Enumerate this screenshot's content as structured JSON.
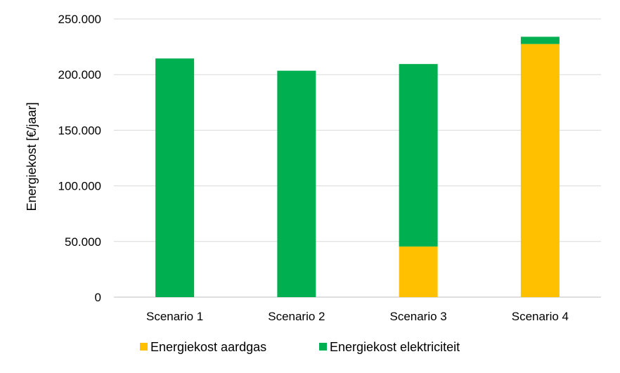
{
  "chart_data": {
    "type": "bar",
    "stacked": true,
    "categories": [
      "Scenario 1",
      "Scenario 2",
      "Scenario 3",
      "Scenario 4"
    ],
    "series": [
      {
        "name": "Energiekost aardgas",
        "color": "#FFC000",
        "values": [
          0,
          0,
          45500,
          227500
        ]
      },
      {
        "name": "Energiekost elektriciteit",
        "color": "#00B050",
        "values": [
          214500,
          203500,
          164000,
          6500
        ]
      }
    ],
    "ylabel": "Energiekost [€/jaar]",
    "xlabel": "",
    "ylim": [
      0,
      250000
    ],
    "yticks": [
      0,
      50000,
      100000,
      150000,
      200000,
      250000
    ],
    "ytick_labels": [
      "0",
      "50.000",
      "100.000",
      "150.000",
      "200.000",
      "250.000"
    ],
    "grid": true,
    "legend_position": "bottom"
  }
}
